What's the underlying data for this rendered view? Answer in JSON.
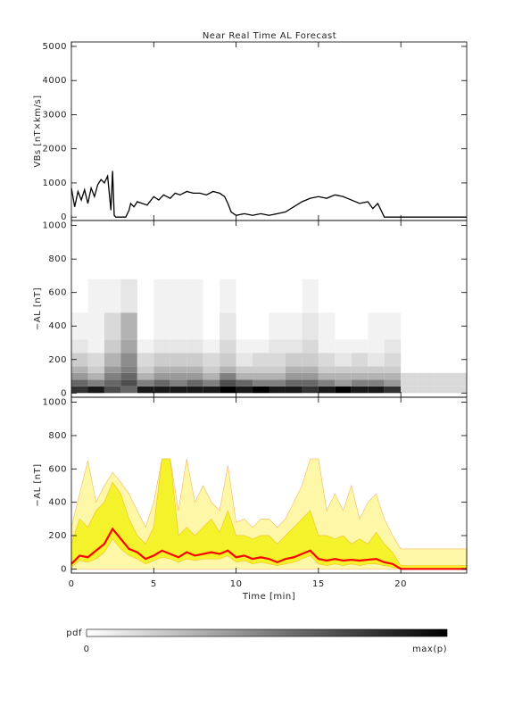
{
  "chart_data": [
    {
      "type": "line",
      "title": "Near Real Time AL Forecast",
      "ylabel": "VBs [nT×km/s]",
      "xlim": [
        0,
        24
      ],
      "ylim": [
        -100,
        5130
      ],
      "yticks": [
        0,
        1000,
        2000,
        3000,
        4000,
        5000
      ],
      "color": "#000000",
      "x": [
        0,
        0.2,
        0.4,
        0.6,
        0.8,
        1.0,
        1.2,
        1.4,
        1.6,
        1.8,
        2.0,
        2.2,
        2.4,
        2.5,
        2.6,
        2.7,
        2.8,
        3.0,
        3.3,
        3.5,
        3.6,
        3.8,
        4.0,
        4.3,
        4.6,
        5.0,
        5.3,
        5.6,
        6.0,
        6.3,
        6.6,
        7.0,
        7.4,
        7.8,
        8.2,
        8.6,
        9.0,
        9.3,
        9.5,
        9.7,
        10.0,
        10.5,
        11,
        11.5,
        12,
        12.5,
        13,
        13.5,
        14,
        14.5,
        15,
        15.5,
        16,
        16.5,
        17,
        17.5,
        18,
        18.3,
        18.6,
        19,
        20,
        21,
        22,
        23,
        24
      ],
      "values": [
        850,
        300,
        750,
        500,
        800,
        400,
        850,
        600,
        950,
        1100,
        1000,
        1200,
        200,
        1350,
        50,
        0,
        0,
        0,
        0,
        200,
        400,
        300,
        450,
        400,
        350,
        600,
        500,
        650,
        550,
        700,
        650,
        750,
        700,
        700,
        650,
        750,
        700,
        600,
        400,
        150,
        50,
        100,
        50,
        100,
        50,
        100,
        150,
        300,
        450,
        550,
        600,
        550,
        650,
        600,
        500,
        400,
        450,
        250,
        400,
        0,
        0,
        0,
        0,
        0,
        0
      ]
    },
    {
      "type": "heatmap",
      "ylabel": "−AL [nT]",
      "xlim": [
        0,
        24
      ],
      "ylim": [
        -25,
        1030
      ],
      "yticks": [
        0,
        200,
        400,
        600,
        800,
        1000
      ],
      "x_edges": [
        0,
        1,
        2,
        3,
        4,
        5,
        6,
        7,
        8,
        9,
        10,
        11,
        12,
        13,
        14,
        15,
        16,
        17,
        18,
        19,
        20,
        21,
        22,
        23,
        24
      ],
      "y_edges": [
        0,
        40,
        80,
        120,
        160,
        240,
        320,
        480,
        680
      ],
      "z": [
        [
          0.8,
          0.9,
          0.7,
          0.6,
          0.9,
          0.9,
          0.9,
          0.9,
          0.9,
          1,
          0.9,
          1,
          0.9,
          0.9,
          0.8,
          0.9,
          1,
          0.9,
          0.9,
          0.8,
          0.15,
          0.15,
          0.15,
          0.15
        ],
        [
          0.6,
          0.5,
          0.6,
          0.7,
          0.5,
          0.6,
          0.5,
          0.6,
          0.5,
          0.7,
          0.6,
          0.5,
          0.5,
          0.6,
          0.6,
          0.5,
          0.4,
          0.5,
          0.5,
          0.4,
          0.15,
          0.15,
          0.15,
          0.15
        ],
        [
          0.4,
          0.3,
          0.5,
          0.6,
          0.3,
          0.4,
          0.4,
          0.4,
          0.3,
          0.5,
          0.3,
          0.3,
          0.3,
          0.4,
          0.4,
          0.3,
          0.3,
          0.3,
          0.3,
          0.3,
          0.15,
          0.15,
          0.15,
          0.15
        ],
        [
          0.3,
          0.2,
          0.4,
          0.5,
          0.2,
          0.3,
          0.3,
          0.3,
          0.2,
          0.3,
          0.2,
          0.2,
          0.2,
          0.3,
          0.3,
          0.2,
          0.2,
          0.2,
          0.2,
          0.2,
          0,
          0,
          0,
          0
        ],
        [
          0.2,
          0.15,
          0.3,
          0.45,
          0.15,
          0.2,
          0.2,
          0.2,
          0.15,
          0.2,
          0.1,
          0.15,
          0.15,
          0.2,
          0.2,
          0.15,
          0.1,
          0.15,
          0.1,
          0.15,
          0,
          0,
          0,
          0
        ],
        [
          0.1,
          0.05,
          0.2,
          0.35,
          0.05,
          0.1,
          0.1,
          0.1,
          0.05,
          0.15,
          0.05,
          0.05,
          0.1,
          0.1,
          0.15,
          0.05,
          0.05,
          0.05,
          0.05,
          0.1,
          0,
          0,
          0,
          0
        ],
        [
          0.05,
          0.05,
          0.15,
          0.3,
          0,
          0.05,
          0.05,
          0.05,
          0,
          0.1,
          0,
          0,
          0.05,
          0.05,
          0.1,
          0.05,
          0,
          0,
          0.05,
          0.05,
          0,
          0,
          0,
          0
        ],
        [
          0,
          0.05,
          0.05,
          0.1,
          0,
          0.05,
          0.05,
          0.05,
          0,
          0.05,
          0,
          0,
          0,
          0,
          0.05,
          0,
          0,
          0,
          0,
          0,
          0,
          0,
          0,
          0
        ]
      ]
    },
    {
      "type": "band",
      "ylabel": "−AL [nT]",
      "xlabel": "Time [min]",
      "xlim": [
        0,
        24
      ],
      "ylim": [
        -25,
        1030
      ],
      "yticks": [
        0,
        200,
        400,
        600,
        800,
        1000
      ],
      "xticks": [
        0,
        5,
        10,
        15,
        20
      ],
      "x": [
        0,
        0.5,
        1,
        1.5,
        2,
        2.5,
        3,
        3.5,
        4,
        4.5,
        5,
        5.5,
        6,
        6.5,
        7,
        7.5,
        8,
        8.5,
        9,
        9.5,
        10,
        10.5,
        11,
        11.5,
        12,
        12.5,
        13,
        13.5,
        14,
        14.5,
        15,
        15.5,
        16,
        16.5,
        17,
        17.5,
        18,
        18.5,
        19,
        19.5,
        20,
        20.5,
        21,
        21.5,
        22,
        22.5,
        23,
        23.5,
        24
      ],
      "bands": [
        {
          "color": "#fff7a8",
          "edge": "#f5b860",
          "low": [
            0,
            0,
            0,
            0,
            0,
            0,
            0,
            0,
            0,
            0,
            0,
            0,
            0,
            0,
            0,
            0,
            0,
            0,
            0,
            0,
            0,
            0,
            0,
            0,
            0,
            0,
            0,
            0,
            0,
            0,
            0,
            0,
            0,
            0,
            0,
            0,
            0,
            0,
            0,
            0,
            0,
            0,
            0,
            0,
            0,
            0,
            0,
            0,
            0
          ],
          "high": [
            250,
            450,
            650,
            400,
            500,
            580,
            520,
            450,
            350,
            250,
            400,
            660,
            660,
            350,
            660,
            400,
            500,
            400,
            350,
            620,
            280,
            300,
            250,
            300,
            300,
            250,
            300,
            400,
            500,
            660,
            660,
            350,
            450,
            350,
            500,
            300,
            400,
            450,
            300,
            200,
            120,
            120,
            120,
            120,
            120,
            120,
            120,
            120,
            120
          ]
        },
        {
          "color": "#f4f22a",
          "edge": "#f0c020",
          "low": [
            10,
            50,
            40,
            60,
            100,
            180,
            120,
            80,
            60,
            30,
            50,
            70,
            60,
            40,
            60,
            50,
            60,
            60,
            60,
            80,
            40,
            50,
            30,
            40,
            30,
            20,
            30,
            40,
            60,
            80,
            30,
            20,
            30,
            20,
            30,
            20,
            30,
            30,
            20,
            10,
            0,
            0,
            0,
            0,
            0,
            0,
            0,
            0,
            0
          ],
          "high": [
            150,
            300,
            250,
            350,
            400,
            520,
            450,
            300,
            200,
            150,
            250,
            660,
            660,
            200,
            250,
            200,
            250,
            300,
            220,
            350,
            200,
            200,
            180,
            200,
            200,
            150,
            200,
            250,
            300,
            350,
            200,
            200,
            180,
            200,
            150,
            180,
            150,
            220,
            150,
            100,
            20,
            20,
            20,
            20,
            20,
            20,
            20,
            20,
            20
          ]
        }
      ],
      "median": {
        "color": "#ff0000",
        "values": [
          30,
          80,
          70,
          110,
          150,
          240,
          180,
          120,
          100,
          60,
          80,
          110,
          90,
          70,
          100,
          80,
          90,
          100,
          90,
          110,
          70,
          80,
          60,
          70,
          60,
          40,
          60,
          70,
          90,
          110,
          60,
          50,
          60,
          50,
          55,
          50,
          55,
          60,
          40,
          30,
          0,
          0,
          0,
          0,
          0,
          0,
          0,
          0,
          0
        ]
      }
    }
  ],
  "colorbar": {
    "label": "pdf",
    "left": "0",
    "right": "max(p)"
  }
}
